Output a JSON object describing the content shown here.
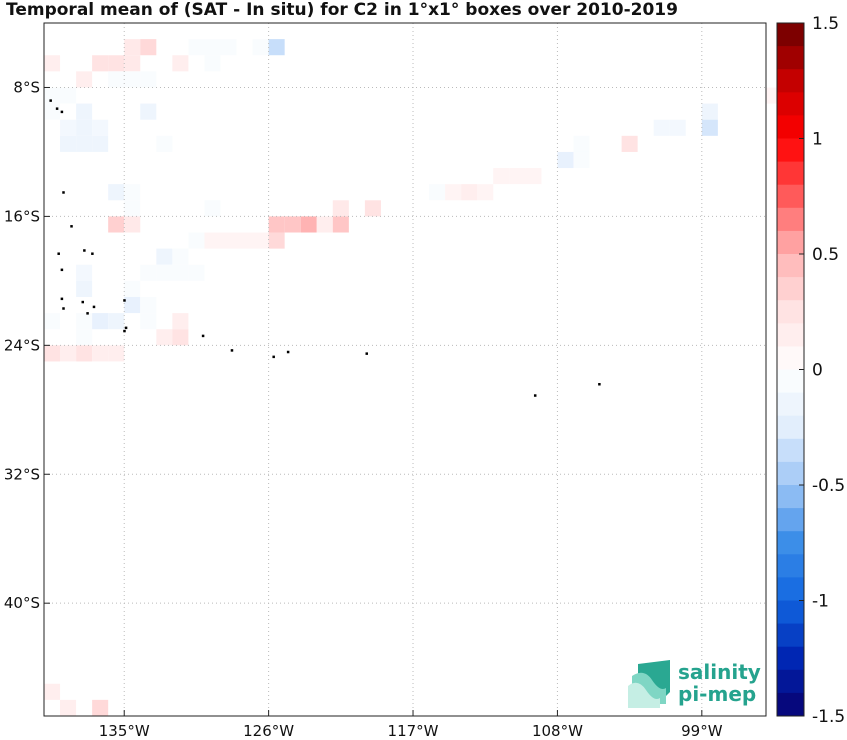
{
  "title": "Temporal mean of (SAT - In situ) for C2 in 1°x1° boxes over 2010-2019",
  "axes": {
    "lon_ticks": [
      {
        "lon": -135,
        "label": "135°W"
      },
      {
        "lon": -126,
        "label": "126°W"
      },
      {
        "lon": -117,
        "label": "117°W"
      },
      {
        "lon": -108,
        "label": "108°W"
      },
      {
        "lon": -99,
        "label": "99°W"
      }
    ],
    "lat_ticks": [
      {
        "lat": -8,
        "label": "8°S"
      },
      {
        "lat": -16,
        "label": "16°S"
      },
      {
        "lat": -24,
        "label": "24°S"
      },
      {
        "lat": -32,
        "label": "32°S"
      },
      {
        "lat": -40,
        "label": "40°S"
      }
    ],
    "lon_range": [
      -140,
      -95
    ],
    "lat_range": [
      -47,
      -4
    ],
    "grid": true
  },
  "colorbar": {
    "range": [
      -1.5,
      1.5
    ],
    "step": 0.1,
    "ticks": [
      "1.5",
      "1",
      "0.5",
      "0",
      "-0.5",
      "-1",
      "-1.5"
    ],
    "colormap": "blue-white-red",
    "low_color": "#08006f",
    "high_color": "#6b0000"
  },
  "chart_data": {
    "type": "heatmap",
    "xlabel": "",
    "ylabel": "",
    "x": "longitude (°E, negative = West)",
    "y": "latitude (°N, negative = South)",
    "cells": [
      [
        -135,
        -5,
        0.2
      ],
      [
        -134,
        -5,
        0.3
      ],
      [
        -131,
        -5,
        -0.05
      ],
      [
        -130,
        -5,
        -0.05
      ],
      [
        -129,
        -5,
        -0.05
      ],
      [
        -127,
        -5,
        -0.05
      ],
      [
        -126,
        -5,
        -0.35
      ],
      [
        -140,
        -6,
        0.15
      ],
      [
        -137,
        -6,
        0.25
      ],
      [
        -136,
        -6,
        0.25
      ],
      [
        -135,
        -6,
        0.2
      ],
      [
        -132,
        -6,
        0.15
      ],
      [
        -130,
        -6,
        -0.05
      ],
      [
        -138,
        -7,
        0.15
      ],
      [
        -136,
        -7,
        -0.05
      ],
      [
        -135,
        -7,
        -0.05
      ],
      [
        -134,
        -7,
        -0.05
      ],
      [
        -140,
        -8,
        -0.05
      ],
      [
        -139,
        -8,
        -0.05
      ],
      [
        -95,
        -8,
        0.1
      ],
      [
        -140,
        -9,
        -0.05
      ],
      [
        -138,
        -9,
        -0.15
      ],
      [
        -134,
        -9,
        -0.15
      ],
      [
        -99,
        -9,
        -0.15
      ],
      [
        -139,
        -10,
        -0.1
      ],
      [
        -138,
        -10,
        -0.15
      ],
      [
        -137,
        -10,
        -0.1
      ],
      [
        -102,
        -10,
        -0.1
      ],
      [
        -101,
        -10,
        -0.1
      ],
      [
        -99,
        -10,
        -0.3
      ],
      [
        -139,
        -11,
        -0.15
      ],
      [
        -138,
        -11,
        -0.15
      ],
      [
        -137,
        -11,
        -0.15
      ],
      [
        -133,
        -11,
        -0.05
      ],
      [
        -107,
        -11,
        -0.05
      ],
      [
        -104,
        -11,
        0.25
      ],
      [
        -108,
        -12,
        -0.2
      ],
      [
        -107,
        -12,
        -0.05
      ],
      [
        -112,
        -13,
        0.1
      ],
      [
        -111,
        -13,
        0.1
      ],
      [
        -110,
        -13,
        0.1
      ],
      [
        -136,
        -14,
        -0.15
      ],
      [
        -135,
        -14,
        -0.05
      ],
      [
        -116,
        -14,
        -0.05
      ],
      [
        -115,
        -14,
        0.1
      ],
      [
        -114,
        -14,
        0.15
      ],
      [
        -113,
        -14,
        0.1
      ],
      [
        -135,
        -15,
        -0.05
      ],
      [
        -130,
        -15,
        -0.05
      ],
      [
        -122,
        -15,
        0.2
      ],
      [
        -120,
        -15,
        0.25
      ],
      [
        -136,
        -16,
        0.35
      ],
      [
        -135,
        -16,
        0.2
      ],
      [
        -126,
        -16,
        0.4
      ],
      [
        -125,
        -16,
        0.4
      ],
      [
        -124,
        -16,
        0.5
      ],
      [
        -123,
        -16,
        0.15
      ],
      [
        -122,
        -16,
        0.4
      ],
      [
        -131,
        -17,
        -0.05
      ],
      [
        -130,
        -17,
        0.1
      ],
      [
        -129,
        -17,
        0.1
      ],
      [
        -128,
        -17,
        0.1
      ],
      [
        -127,
        -17,
        0.1
      ],
      [
        -126,
        -17,
        0.3
      ],
      [
        -133,
        -18,
        -0.15
      ],
      [
        -132,
        -18,
        -0.05
      ],
      [
        -138,
        -19,
        -0.1
      ],
      [
        -134,
        -19,
        -0.05
      ],
      [
        -133,
        -19,
        -0.05
      ],
      [
        -132,
        -19,
        -0.05
      ],
      [
        -131,
        -19,
        -0.05
      ],
      [
        -138,
        -20,
        -0.15
      ],
      [
        -135,
        -20,
        -0.05
      ],
      [
        -135,
        -21,
        -0.2
      ],
      [
        -134,
        -21,
        -0.05
      ],
      [
        -140,
        -22,
        -0.05
      ],
      [
        -138,
        -22,
        -0.05
      ],
      [
        -137,
        -22,
        -0.2
      ],
      [
        -136,
        -22,
        -0.15
      ],
      [
        -134,
        -22,
        -0.05
      ],
      [
        -132,
        -22,
        0.15
      ],
      [
        -138,
        -23,
        -0.05
      ],
      [
        -133,
        -23,
        0.15
      ],
      [
        -132,
        -23,
        0.25
      ],
      [
        -140,
        -24,
        0.25
      ],
      [
        -139,
        -24,
        0.15
      ],
      [
        -138,
        -24,
        0.25
      ],
      [
        -137,
        -24,
        0.15
      ],
      [
        -136,
        -24,
        0.15
      ],
      [
        -140,
        -45,
        0.15
      ],
      [
        -139,
        -46,
        0.15
      ],
      [
        -137,
        -46,
        0.3
      ]
    ],
    "islands": [
      [
        -139.6,
        -8.8
      ],
      [
        -139.2,
        -9.3
      ],
      [
        -138.9,
        -9.5
      ],
      [
        -138.8,
        -14.5
      ],
      [
        -138.3,
        -16.6
      ],
      [
        -139.1,
        -18.3
      ],
      [
        -138.9,
        -19.3
      ],
      [
        -137.5,
        -18.1
      ],
      [
        -137.0,
        -18.3
      ],
      [
        -138.9,
        -21.1
      ],
      [
        -138.8,
        -21.7
      ],
      [
        -137.6,
        -21.3
      ],
      [
        -136.9,
        -21.6
      ],
      [
        -137.3,
        -22.0
      ],
      [
        -135.0,
        -21.2
      ],
      [
        -135.0,
        -23.1
      ],
      [
        -134.9,
        -22.9
      ],
      [
        -130.1,
        -23.4
      ],
      [
        -128.3,
        -24.3
      ],
      [
        -125.7,
        -24.7
      ],
      [
        -124.8,
        -24.4
      ],
      [
        -119.9,
        -24.5
      ],
      [
        -109.4,
        -27.1
      ],
      [
        -105.4,
        -26.4
      ]
    ]
  },
  "logo": {
    "line1": "salinity",
    "line2": "pi-mep"
  }
}
